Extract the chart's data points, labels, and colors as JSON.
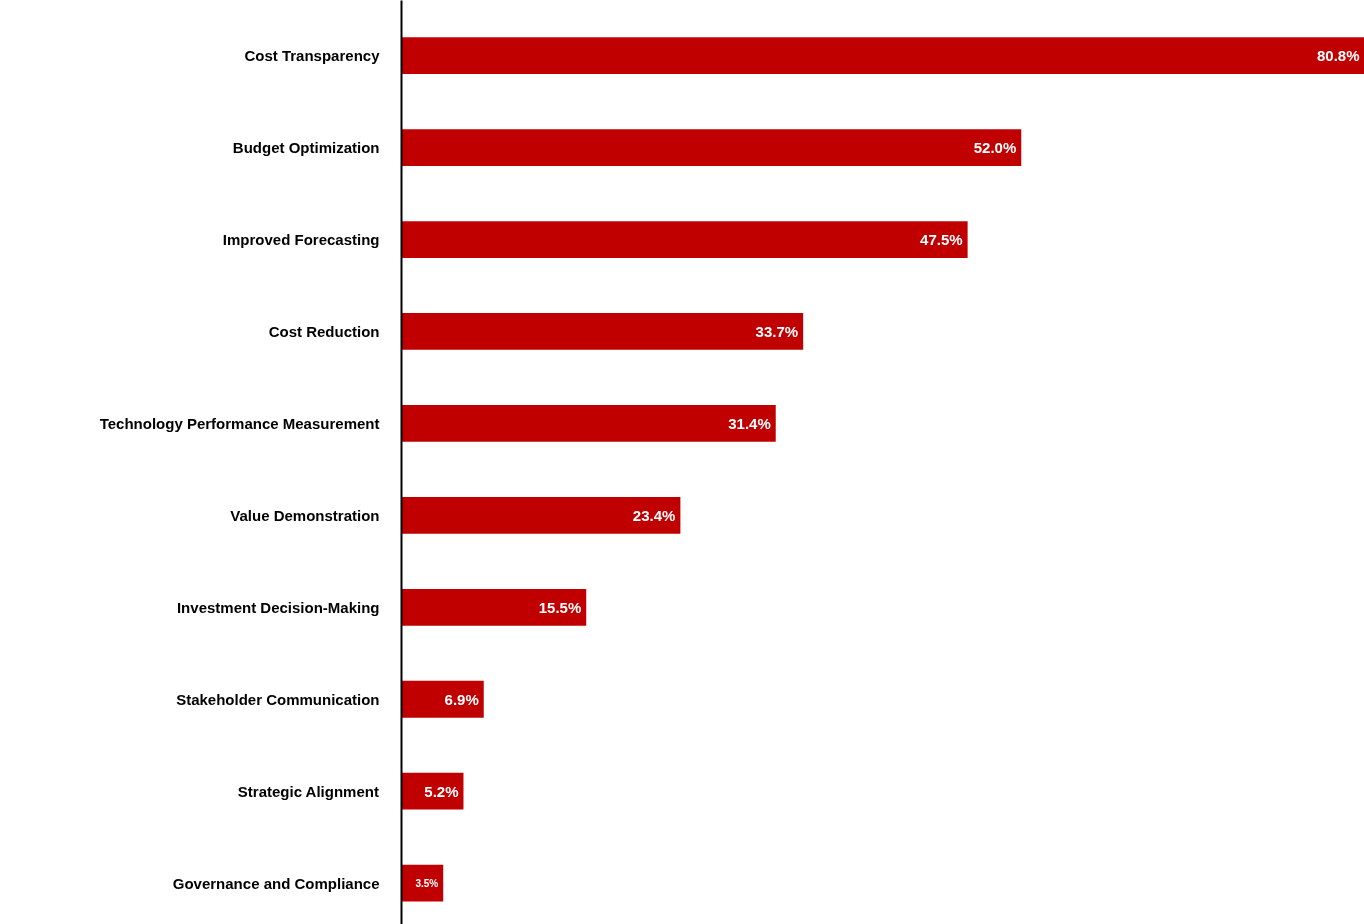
{
  "chart_data": {
    "type": "bar",
    "orientation": "horizontal",
    "categories": [
      "Cost Transparency",
      "Budget Optimization",
      "Improved Forecasting",
      "Cost Reduction",
      "Technology Performance Measurement",
      "Value Demonstration",
      "Investment Decision-Making",
      "Stakeholder Communication",
      "Strategic Alignment",
      "Governance and Compliance"
    ],
    "values": [
      80.8,
      52.0,
      47.5,
      33.7,
      31.4,
      23.4,
      15.5,
      6.9,
      5.2,
      3.5
    ],
    "value_labels": [
      "80.8%",
      "52.0%",
      "47.5%",
      "33.7%",
      "31.4%",
      "23.4%",
      "15.5%",
      "6.9%",
      "5.2%",
      "3.5%"
    ],
    "color": "#c00000",
    "grid": false
  }
}
